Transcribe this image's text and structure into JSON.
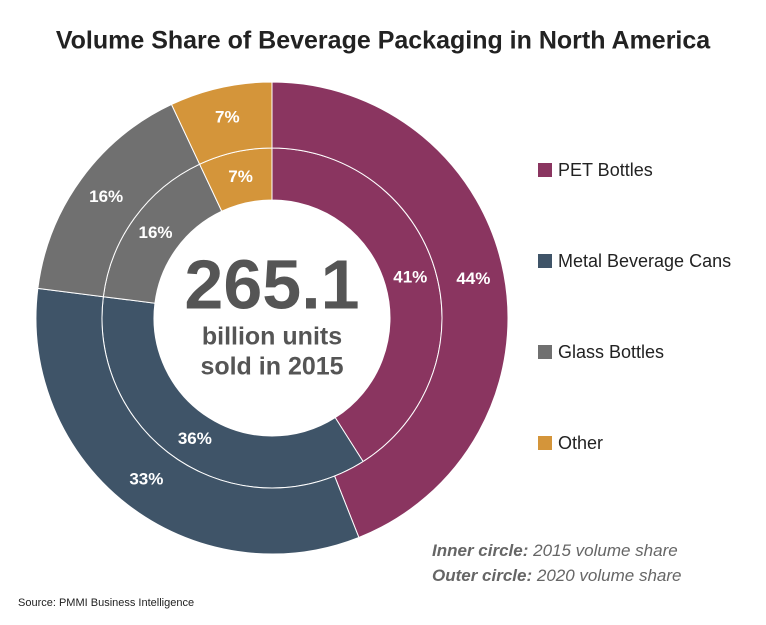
{
  "chart_data": {
    "type": "donut",
    "title": "Volume Share of Beverage Packaging in North America",
    "categories": [
      "PET Bottles",
      "Metal Beverage Cans",
      "Glass Bottles",
      "Other"
    ],
    "colors": [
      "#8a3560",
      "#3f5468",
      "#707070",
      "#d4953a"
    ],
    "series": [
      {
        "name": "Inner circle:",
        "note": "2015 volume share",
        "values": [
          41,
          36,
          16,
          7
        ],
        "value_labels": [
          "41%",
          "36%",
          "16%",
          "7%"
        ]
      },
      {
        "name": "Outer circle:",
        "note": "2020 volume share",
        "values": [
          44,
          33,
          16,
          7
        ],
        "value_labels": [
          "44%",
          "33%",
          "16%",
          "7%"
        ]
      }
    ],
    "center_value": 265.1,
    "center_text": [
      "billion units",
      "sold in 2015"
    ],
    "source": "Source: PMMI Business Intelligence"
  }
}
